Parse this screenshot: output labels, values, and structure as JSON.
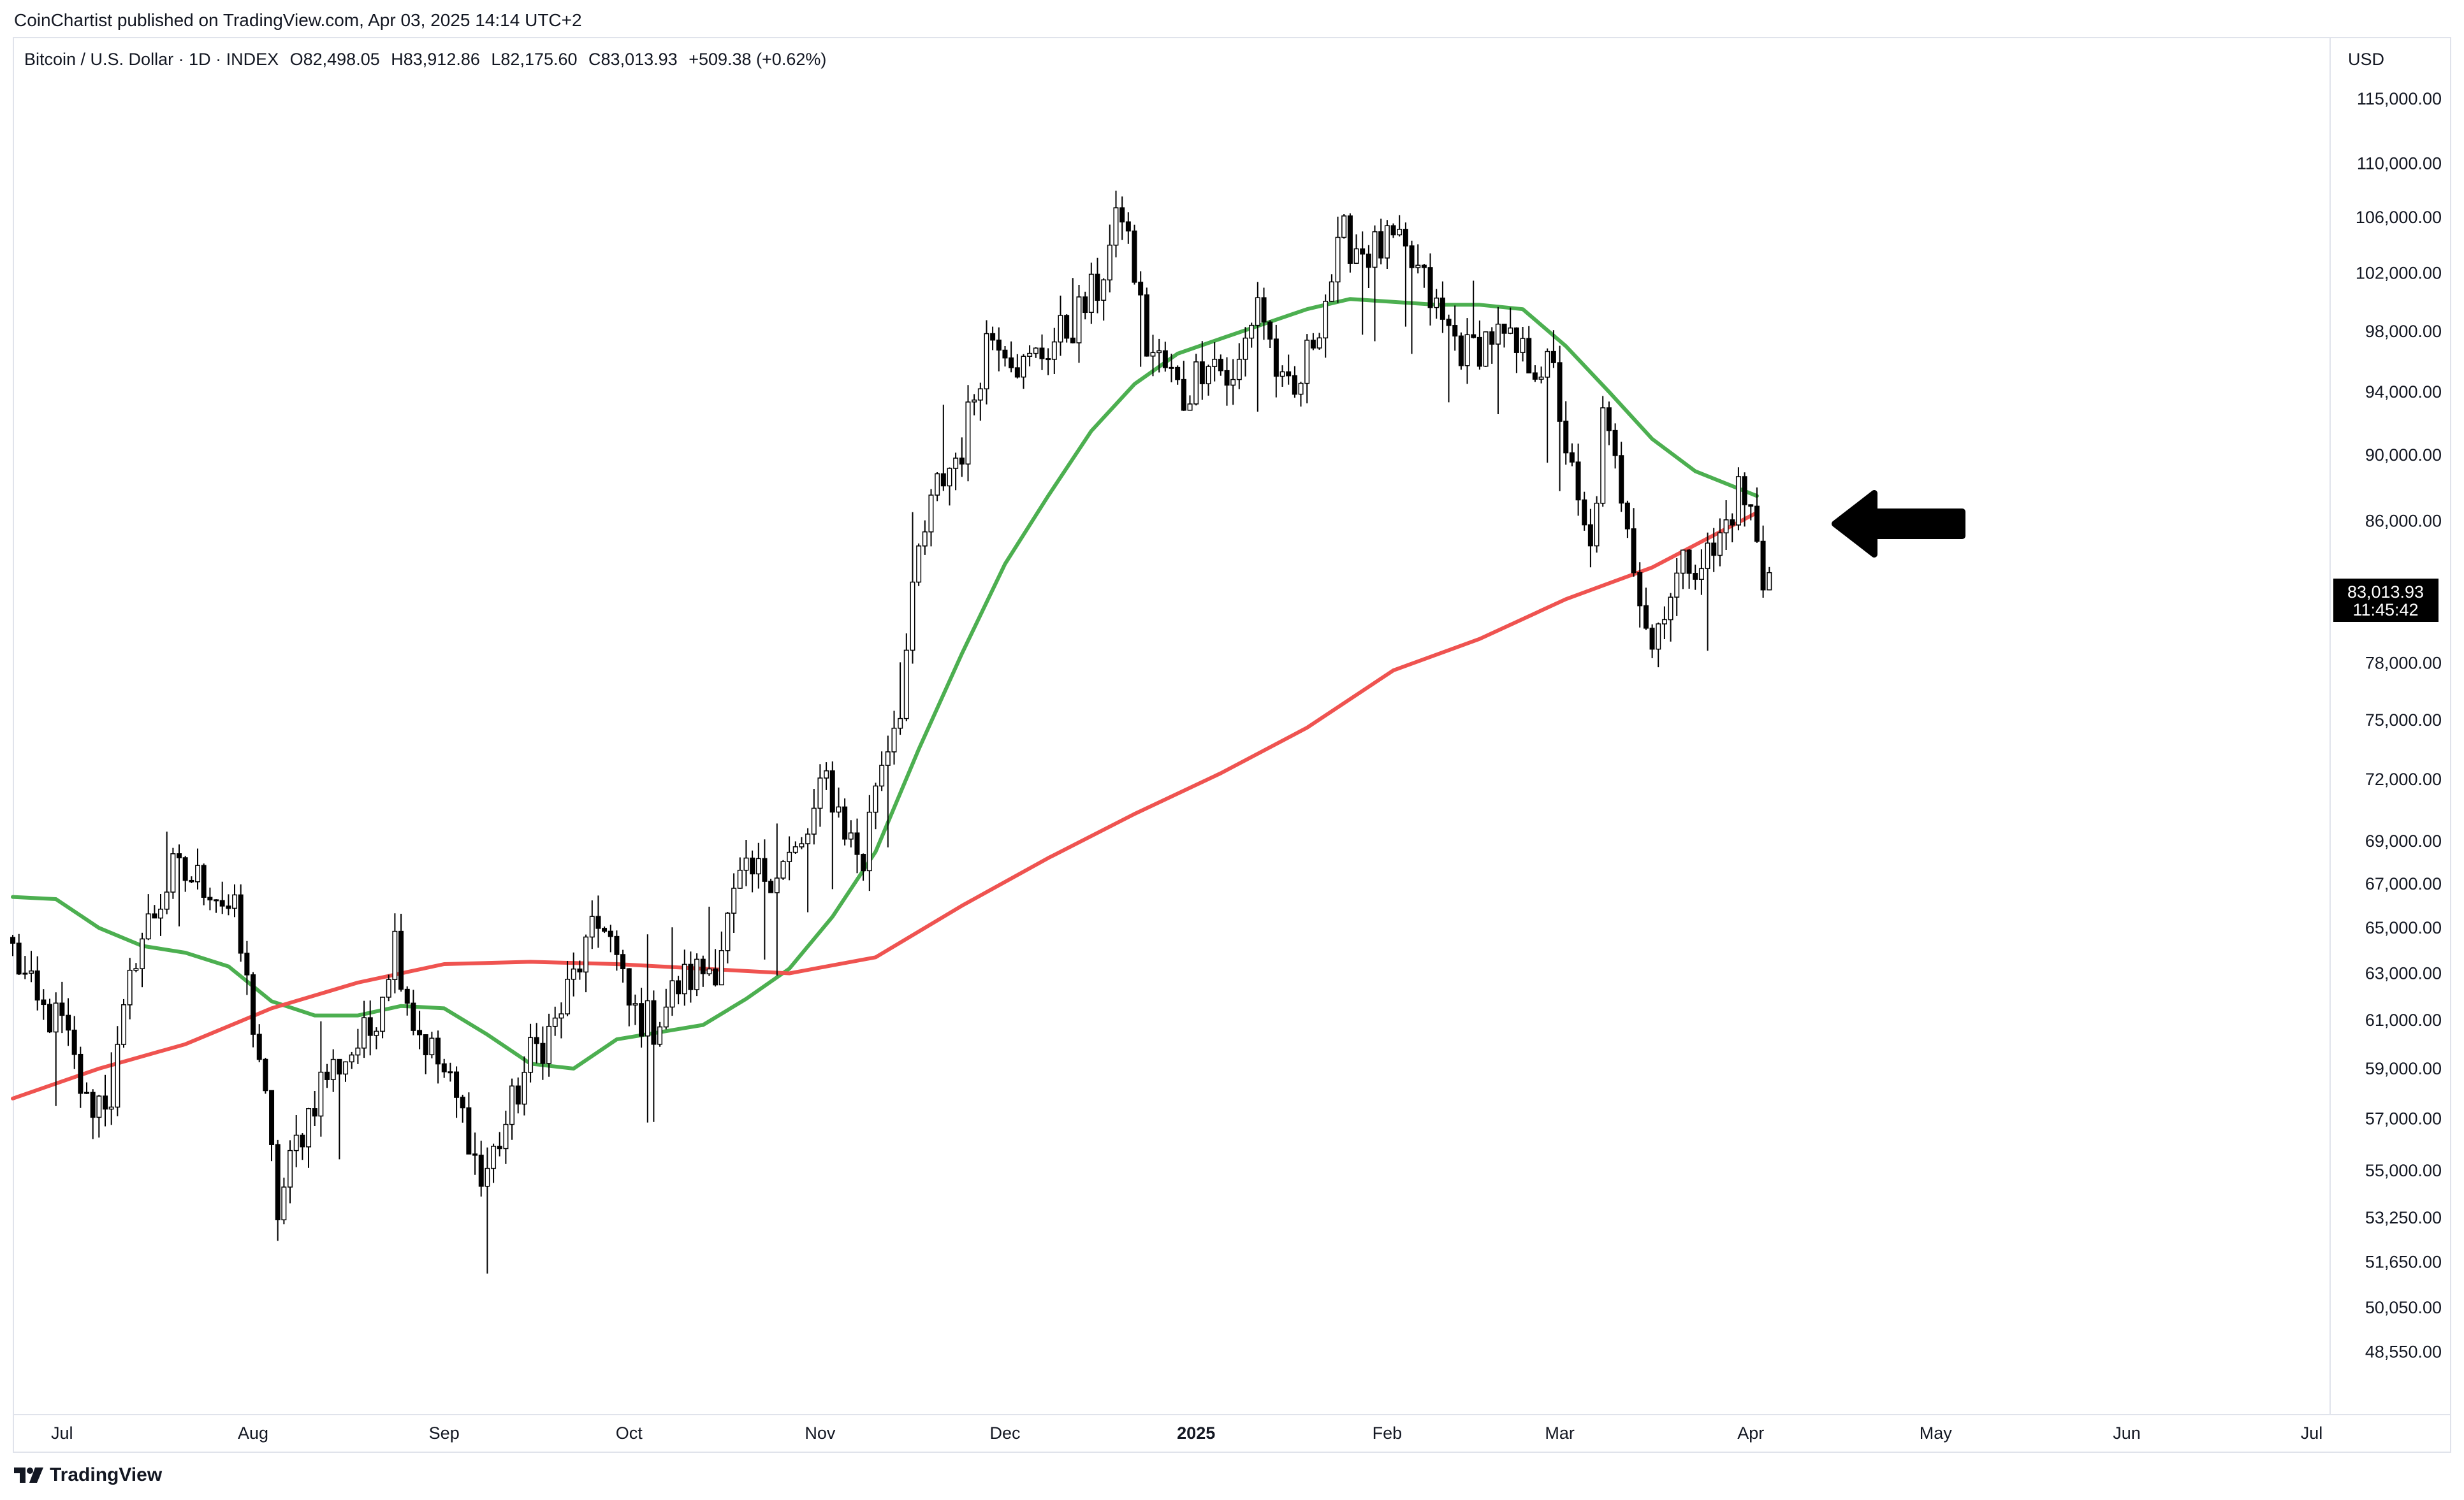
{
  "publisher": "CoinChartist published on TradingView.com, Apr 03, 2025 14:14 UTC+2",
  "legend": {
    "symbol": "Bitcoin / U.S. Dollar · 1D · INDEX",
    "open": "O82,498.05",
    "high": "H83,912.86",
    "low": "L82,175.60",
    "close": "C83,013.93",
    "change": "+509.38 (+0.62%)"
  },
  "currency": "USD",
  "price_tag": {
    "price": "83,013.93",
    "countdown": "11:45:42"
  },
  "brand": "TradingView",
  "colors": {
    "up_candle": "#ffffff",
    "down_candle": "#000000",
    "candle_outline": "#000000",
    "ma_short": "#4caf50",
    "ma_long": "#ef5350",
    "arrow": "#000000",
    "price_tag_bg": "#000000",
    "grid": "#e0e3eb",
    "text": "#131722"
  },
  "chart_data": {
    "type": "candlestick",
    "title": "Bitcoin / U.S. Dollar · 1D · INDEX",
    "y_scale": "log",
    "ylim": [
      46500,
      120000
    ],
    "xlim": [
      "2024-06-23",
      "2025-07-04"
    ],
    "y_ticks": [
      {
        "v": 115000,
        "label": "115,000.00"
      },
      {
        "v": 110000,
        "label": "110,000.00"
      },
      {
        "v": 106000,
        "label": "106,000.00"
      },
      {
        "v": 102000,
        "label": "102,000.00"
      },
      {
        "v": 98000,
        "label": "98,000.00"
      },
      {
        "v": 94000,
        "label": "94,000.00"
      },
      {
        "v": 90000,
        "label": "90,000.00"
      },
      {
        "v": 86000,
        "label": "86,000.00"
      },
      {
        "v": 78000,
        "label": "78,000.00"
      },
      {
        "v": 75000,
        "label": "75,000.00"
      },
      {
        "v": 72000,
        "label": "72,000.00"
      },
      {
        "v": 69000,
        "label": "69,000.00"
      },
      {
        "v": 67000,
        "label": "67,000.00"
      },
      {
        "v": 65000,
        "label": "65,000.00"
      },
      {
        "v": 63000,
        "label": "63,000.00"
      },
      {
        "v": 61000,
        "label": "61,000.00"
      },
      {
        "v": 59000,
        "label": "59,000.00"
      },
      {
        "v": 57000,
        "label": "57,000.00"
      },
      {
        "v": 55000,
        "label": "55,000.00"
      },
      {
        "v": 53250,
        "label": "53,250.00"
      },
      {
        "v": 51650,
        "label": "51,650.00"
      },
      {
        "v": 50050,
        "label": "50,050.00"
      },
      {
        "v": 48550,
        "label": "48,550.00"
      }
    ],
    "x_ticks": [
      {
        "date": "2024-07-01",
        "label": "Jul",
        "bold": false
      },
      {
        "date": "2024-08-01",
        "label": "Aug",
        "bold": false
      },
      {
        "date": "2024-09-01",
        "label": "Sep",
        "bold": false
      },
      {
        "date": "2024-10-01",
        "label": "Oct",
        "bold": false
      },
      {
        "date": "2024-11-01",
        "label": "Nov",
        "bold": false
      },
      {
        "date": "2024-12-01",
        "label": "Dec",
        "bold": false
      },
      {
        "date": "2025-01-01",
        "label": "2025",
        "bold": true
      },
      {
        "date": "2025-02-01",
        "label": "Feb",
        "bold": false
      },
      {
        "date": "2025-03-01",
        "label": "Mar",
        "bold": false
      },
      {
        "date": "2025-04-01",
        "label": "Apr",
        "bold": false
      },
      {
        "date": "2025-05-01",
        "label": "May",
        "bold": false
      },
      {
        "date": "2025-06-01",
        "label": "Jun",
        "bold": false
      },
      {
        "date": "2025-07-01",
        "label": "Jul",
        "bold": false
      }
    ],
    "price_path": {
      "start_date": "2024-06-23",
      "days": 285,
      "anchors": [
        [
          0,
          64000
        ],
        [
          4,
          61500
        ],
        [
          8,
          60800
        ],
        [
          12,
          57500
        ],
        [
          16,
          58000
        ],
        [
          20,
          64000
        ],
        [
          26,
          67500
        ],
        [
          32,
          67000
        ],
        [
          36,
          65500
        ],
        [
          40,
          59500
        ],
        [
          43,
          53500
        ],
        [
          46,
          56000
        ],
        [
          50,
          58500
        ],
        [
          54,
          59500
        ],
        [
          58,
          60500
        ],
        [
          62,
          64500
        ],
        [
          65,
          61000
        ],
        [
          70,
          58800
        ],
        [
          74,
          56500
        ],
        [
          76,
          54500
        ],
        [
          80,
          56800
        ],
        [
          84,
          59500
        ],
        [
          88,
          60800
        ],
        [
          92,
          63500
        ],
        [
          96,
          65500
        ],
        [
          100,
          61500
        ],
        [
          104,
          60800
        ],
        [
          108,
          62500
        ],
        [
          114,
          63500
        ],
        [
          118,
          67000
        ],
        [
          124,
          67800
        ],
        [
          128,
          68500
        ],
        [
          132,
          72000
        ],
        [
          136,
          69000
        ],
        [
          138,
          68000
        ],
        [
          140,
          72000
        ],
        [
          144,
          76000
        ],
        [
          147,
          84000
        ],
        [
          150,
          88000
        ],
        [
          154,
          90500
        ],
        [
          158,
          97500
        ],
        [
          160,
          98000
        ],
        [
          164,
          95500
        ],
        [
          168,
          97000
        ],
        [
          172,
          98500
        ],
        [
          176,
          101000
        ],
        [
          180,
          106500
        ],
        [
          182,
          102000
        ],
        [
          184,
          97000
        ],
        [
          188,
          95000
        ],
        [
          190,
          93500
        ],
        [
          194,
          96800
        ],
        [
          198,
          94200
        ],
        [
          202,
          100500
        ],
        [
          206,
          94000
        ],
        [
          208,
          93500
        ],
        [
          212,
          99000
        ],
        [
          216,
          104500
        ],
        [
          220,
          103500
        ],
        [
          224,
          104000
        ],
        [
          228,
          102000
        ],
        [
          232,
          98500
        ],
        [
          236,
          96500
        ],
        [
          240,
          97800
        ],
        [
          244,
          96500
        ],
        [
          248,
          95800
        ],
        [
          250,
          95000
        ],
        [
          254,
          86500
        ],
        [
          256,
          84000
        ],
        [
          258,
          92000
        ],
        [
          262,
          86500
        ],
        [
          264,
          81800
        ],
        [
          266,
          78800
        ],
        [
          268,
          81500
        ],
        [
          272,
          83800
        ],
        [
          276,
          84000
        ],
        [
          280,
          87800
        ],
        [
          282,
          86500
        ],
        [
          284,
          82500
        ],
        [
          285,
          83000
        ]
      ]
    },
    "moving_averages": [
      {
        "color": "#4caf50",
        "points": [
          [
            "2024-06-23",
            66400
          ],
          [
            "2024-06-30",
            66300
          ],
          [
            "2024-07-07",
            65000
          ],
          [
            "2024-07-14",
            64200
          ],
          [
            "2024-07-21",
            63900
          ],
          [
            "2024-07-28",
            63300
          ],
          [
            "2024-08-04",
            61800
          ],
          [
            "2024-08-11",
            61200
          ],
          [
            "2024-08-18",
            61200
          ],
          [
            "2024-08-25",
            61600
          ],
          [
            "2024-09-01",
            61500
          ],
          [
            "2024-09-08",
            60400
          ],
          [
            "2024-09-15",
            59200
          ],
          [
            "2024-09-22",
            59000
          ],
          [
            "2024-09-29",
            60200
          ],
          [
            "2024-10-06",
            60500
          ],
          [
            "2024-10-13",
            60800
          ],
          [
            "2024-10-20",
            61900
          ],
          [
            "2024-10-27",
            63200
          ],
          [
            "2024-11-03",
            65500
          ],
          [
            "2024-11-10",
            68500
          ],
          [
            "2024-11-17",
            73500
          ],
          [
            "2024-11-24",
            78500
          ],
          [
            "2024-12-01",
            83500
          ],
          [
            "2024-12-08",
            87500
          ],
          [
            "2024-12-15",
            91500
          ],
          [
            "2024-12-22",
            94500
          ],
          [
            "2024-12-29",
            96500
          ],
          [
            "2025-01-05",
            97500
          ],
          [
            "2025-01-12",
            98500
          ],
          [
            "2025-01-19",
            99500
          ],
          [
            "2025-01-26",
            100200
          ],
          [
            "2025-02-02",
            100000
          ],
          [
            "2025-02-09",
            99800
          ],
          [
            "2025-02-16",
            99800
          ],
          [
            "2025-02-23",
            99500
          ],
          [
            "2025-03-02",
            97000
          ],
          [
            "2025-03-09",
            94000
          ],
          [
            "2025-03-16",
            91000
          ],
          [
            "2025-03-23",
            89000
          ],
          [
            "2025-04-02",
            87500
          ]
        ]
      },
      {
        "color": "#ef5350",
        "points": [
          [
            "2024-06-23",
            57800
          ],
          [
            "2024-07-07",
            59000
          ],
          [
            "2024-07-21",
            60000
          ],
          [
            "2024-08-04",
            61500
          ],
          [
            "2024-08-18",
            62600
          ],
          [
            "2024-09-01",
            63400
          ],
          [
            "2024-09-15",
            63500
          ],
          [
            "2024-09-29",
            63400
          ],
          [
            "2024-10-13",
            63200
          ],
          [
            "2024-10-27",
            63000
          ],
          [
            "2024-11-10",
            63700
          ],
          [
            "2024-11-24",
            66000
          ],
          [
            "2024-12-08",
            68200
          ],
          [
            "2024-12-22",
            70300
          ],
          [
            "2025-01-05",
            72300
          ],
          [
            "2025-01-19",
            74600
          ],
          [
            "2025-02-02",
            77600
          ],
          [
            "2025-02-16",
            79300
          ],
          [
            "2025-03-02",
            81500
          ],
          [
            "2025-03-16",
            83300
          ],
          [
            "2025-04-02",
            86500
          ]
        ]
      }
    ]
  }
}
